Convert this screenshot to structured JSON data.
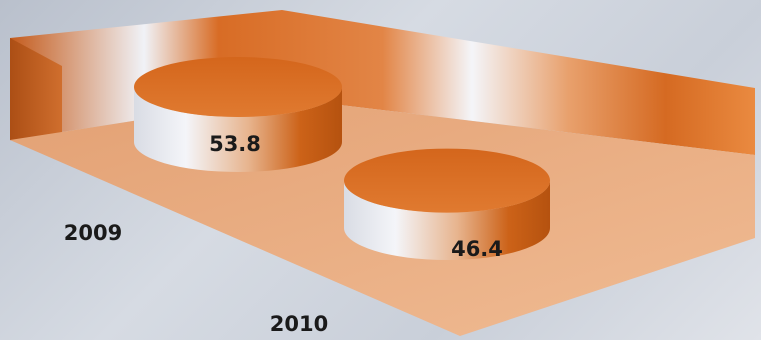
{
  "chart_data": {
    "type": "bar",
    "style": "3d-cylinder",
    "categories": [
      "2009",
      "2010"
    ],
    "values": [
      53.8,
      46.4
    ],
    "data_labels": [
      "53.8",
      "46.4"
    ],
    "title": "",
    "xlabel": "",
    "ylabel": "",
    "grid": false,
    "legend": "none",
    "colors": {
      "bar_top": "#d8691e",
      "bar_side_dark": "#c85a12",
      "bar_side_light": "#eef0f6",
      "floor": "#e9ad80",
      "wall_dark": "#c05a1a",
      "wall_light": "#eef1f7",
      "background": "#c9cfd9"
    }
  }
}
